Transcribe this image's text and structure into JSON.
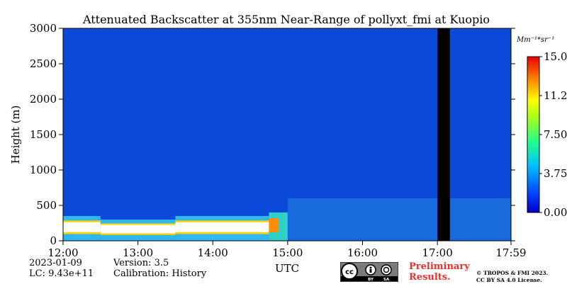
{
  "chart_data": {
    "type": "heatmap",
    "title": "Attenuated Backscatter at 355nm Near-Range of pollyxt_fmi at Kuopio",
    "xlabel": "UTC",
    "ylabel": "Height (m)",
    "xlim": [
      "12:00",
      "17:59"
    ],
    "ylim": [
      0,
      3000
    ],
    "x_ticks": [
      "12:00",
      "13:00",
      "14:00",
      "15:00",
      "16:00",
      "17:00",
      "17:59"
    ],
    "y_ticks": [
      0,
      500,
      1000,
      1500,
      2000,
      2500,
      3000
    ],
    "colorbar": {
      "label": "Mm⁻¹*sr⁻¹",
      "min": 0.0,
      "max": 15.0,
      "ticks": [
        "0.00",
        "3.75",
        "7.50",
        "11.25",
        "15.00"
      ],
      "colormap": "jet"
    },
    "background_value": 0.3,
    "layers": [
      {
        "start": "12:00",
        "end": "12:30",
        "top_m": 350,
        "value": "saturated"
      },
      {
        "start": "12:30",
        "end": "13:30",
        "top_m": 300,
        "value": "saturated"
      },
      {
        "start": "13:30",
        "end": "14:45",
        "top_m": 350,
        "value": "saturated"
      },
      {
        "start": "14:45",
        "end": "15:00",
        "top_m": 400,
        "value": "high"
      },
      {
        "start": "15:00",
        "end": "17:59",
        "top_m": 600,
        "value": "low, patchy"
      }
    ],
    "missing_data": [
      {
        "start": "17:00",
        "end": "17:10"
      }
    ],
    "colors": {
      "background": "#0b49d8",
      "missing": "#000000"
    }
  },
  "info": {
    "date": "2023-01-09",
    "lc": "LC: 9.43e+11",
    "version": "Version: 3.5",
    "calibration": "Calibration: History"
  },
  "footer": {
    "preliminary_line1": "Preliminary",
    "preliminary_line2": "Results.",
    "copyright_line1": "© TROPOS & FMI 2023.",
    "copyright_line2": "CC BY SA 4.0 License.",
    "license_badge": {
      "cc": "cc",
      "by": "BY",
      "sa": "SA"
    }
  }
}
